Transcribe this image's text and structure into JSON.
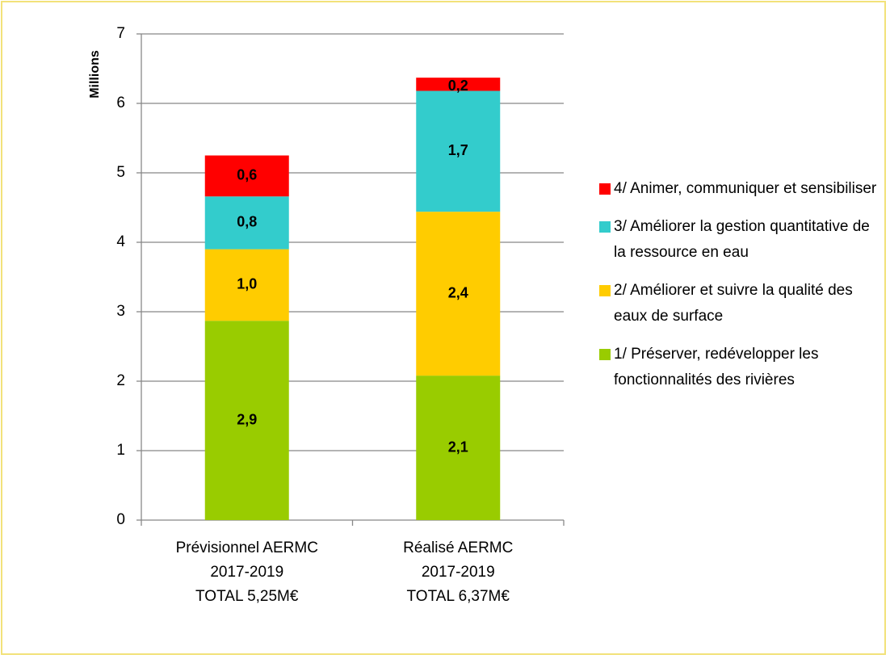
{
  "chart_data": {
    "type": "stacked_bar",
    "y_label": "Millions",
    "categories": [
      [
        "Prévisionnel AERMC",
        "2017-2019",
        "TOTAL  5,25M€"
      ],
      [
        "Réalisé AERMC",
        "2017-2019",
        "TOTAL  6,37M€"
      ]
    ],
    "series": [
      {
        "name": "1/ Préserver, redévelopper les fonctionnalités des rivières",
        "color": "#99cc00",
        "values": [
          2.87,
          2.08
        ],
        "value_labels": [
          "2,9",
          "2,1"
        ]
      },
      {
        "name": "2/ Améliorer et suivre la qualité des eaux de surface",
        "color": "#ffcc00",
        "values": [
          1.03,
          2.36
        ],
        "value_labels": [
          "1,0",
          "2,4"
        ]
      },
      {
        "name": "3/ Améliorer la gestion quantitative de la ressource en eau",
        "color": "#33cccc",
        "values": [
          0.76,
          1.74
        ],
        "value_labels": [
          "0,8",
          "1,7"
        ]
      },
      {
        "name": "4/ Animer, communiquer et sensibiliser",
        "color": "#ff0000",
        "values": [
          0.59,
          0.19
        ],
        "value_labels": [
          "0,6",
          "0,2"
        ]
      }
    ],
    "ylim": [
      0,
      7
    ],
    "yticks": [
      0,
      1,
      2,
      3,
      4,
      5,
      6,
      7
    ],
    "grid": true,
    "legend": "right"
  }
}
